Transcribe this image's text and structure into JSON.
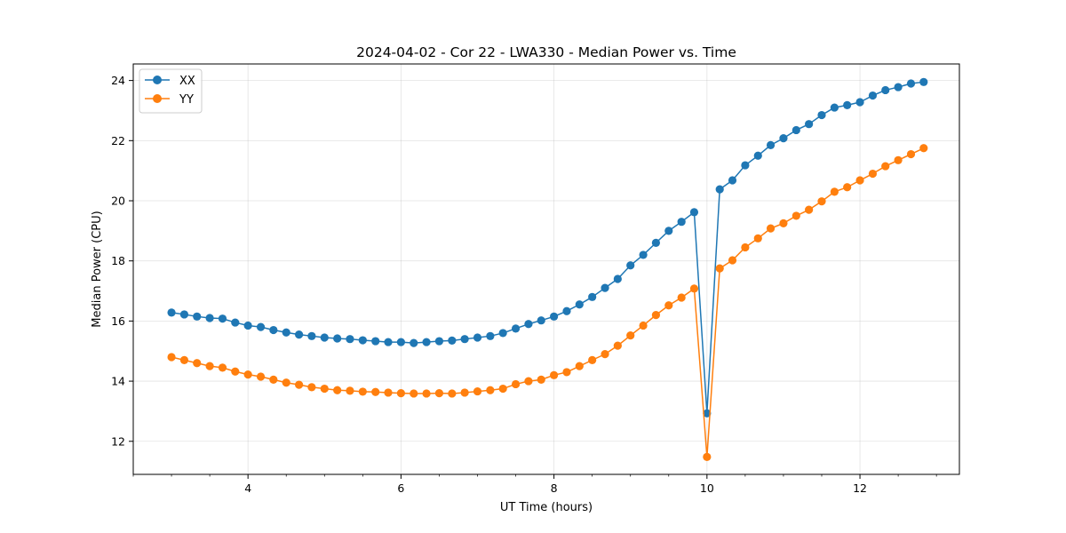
{
  "chart_data": {
    "type": "line",
    "title": "2024-04-02 - Cor 22 - LWA330 - Median Power vs. Time",
    "xlabel": "UT Time (hours)",
    "ylabel": "Median Power (CPU)",
    "xlim": [
      2.5,
      13.3
    ],
    "ylim": [
      10.9,
      24.55
    ],
    "xticks": [
      4,
      6,
      8,
      10,
      12
    ],
    "xtick_labels": [
      "4",
      "6",
      "8",
      "10",
      "12"
    ],
    "yticks": [
      12,
      14,
      16,
      18,
      20,
      22,
      24
    ],
    "ytick_labels": [
      "12",
      "14",
      "16",
      "18",
      "20",
      "22",
      "24"
    ],
    "grid": true,
    "legend_position": "top-left",
    "colors": {
      "XX": "#1f77b4",
      "YY": "#ff7f0e"
    },
    "x": [
      3.0,
      3.167,
      3.333,
      3.5,
      3.667,
      3.833,
      4.0,
      4.167,
      4.333,
      4.5,
      4.667,
      4.833,
      5.0,
      5.167,
      5.333,
      5.5,
      5.667,
      5.833,
      6.0,
      6.167,
      6.333,
      6.5,
      6.667,
      6.833,
      7.0,
      7.167,
      7.333,
      7.5,
      7.667,
      7.833,
      8.0,
      8.167,
      8.333,
      8.5,
      8.667,
      8.833,
      9.0,
      9.167,
      9.333,
      9.5,
      9.667,
      9.833,
      10.0,
      10.167,
      10.333,
      10.5,
      10.667,
      10.833,
      11.0,
      11.167,
      11.333,
      11.5,
      11.667,
      11.833,
      12.0,
      12.167,
      12.333,
      12.5,
      12.667,
      12.833
    ],
    "series": [
      {
        "name": "XX",
        "values": [
          16.28,
          16.22,
          16.15,
          16.1,
          16.08,
          15.95,
          15.85,
          15.8,
          15.7,
          15.62,
          15.55,
          15.5,
          15.45,
          15.42,
          15.4,
          15.36,
          15.33,
          15.3,
          15.3,
          15.27,
          15.3,
          15.33,
          15.35,
          15.4,
          15.45,
          15.5,
          15.6,
          15.75,
          15.9,
          16.02,
          16.15,
          16.33,
          16.55,
          16.8,
          17.1,
          17.4,
          17.85,
          18.2,
          18.6,
          19.0,
          19.3,
          19.62,
          12.93,
          20.38,
          20.68,
          21.18,
          21.5,
          21.85,
          22.08,
          22.35,
          22.55,
          22.85,
          23.1,
          23.18,
          23.28,
          23.5,
          23.68,
          23.78,
          23.9,
          23.95
        ]
      },
      {
        "name": "YY",
        "values": [
          14.8,
          14.7,
          14.6,
          14.5,
          14.45,
          14.32,
          14.22,
          14.15,
          14.05,
          13.95,
          13.88,
          13.8,
          13.75,
          13.7,
          13.68,
          13.65,
          13.64,
          13.62,
          13.6,
          13.59,
          13.59,
          13.6,
          13.59,
          13.62,
          13.66,
          13.7,
          13.75,
          13.9,
          14.0,
          14.05,
          14.2,
          14.3,
          14.5,
          14.7,
          14.9,
          15.18,
          15.52,
          15.85,
          16.2,
          16.52,
          16.78,
          17.08,
          11.48,
          17.75,
          18.02,
          18.45,
          18.75,
          19.08,
          19.25,
          19.5,
          19.7,
          19.98,
          20.3,
          20.45,
          20.68,
          20.9,
          21.15,
          21.35,
          21.55,
          21.75
        ]
      }
    ]
  }
}
